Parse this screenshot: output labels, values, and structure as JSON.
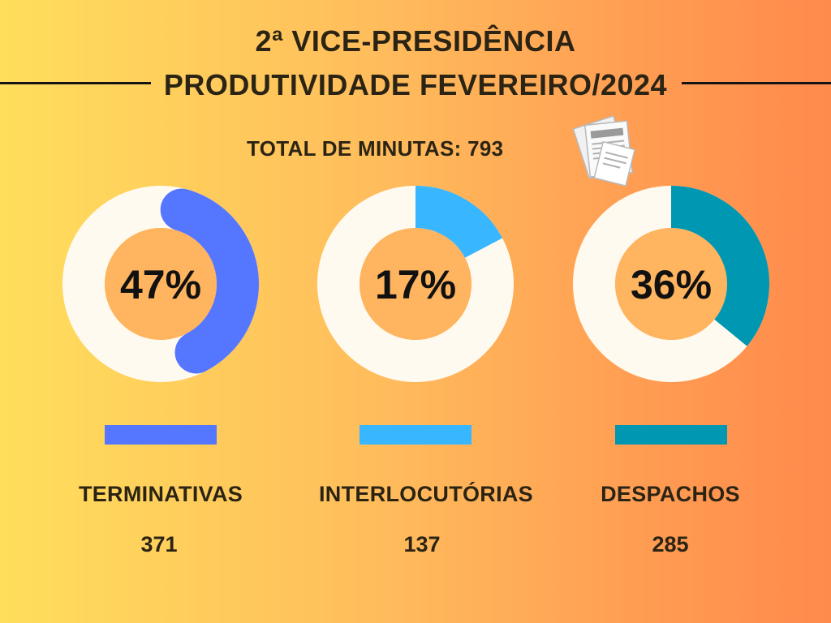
{
  "header": {
    "title_line1": "2ª VICE-PRESIDÊNCIA",
    "title_line2": "PRODUTIVIDADE FEVEREIRO/2024",
    "total_text": "TOTAL DE MINUTAS: 793",
    "icon": "documents-icon"
  },
  "colors": {
    "track": "#fffaf0",
    "hole": "#ffb45f",
    "terminativas": "#5576ff",
    "interlocutorias": "#38b6ff",
    "despachos": "#0097b2"
  },
  "chart_data": {
    "type": "pie",
    "total": 793,
    "categories": [
      "TERMINATIVAS",
      "INTERLOCUTÓRIAS",
      "DESPACHOS"
    ],
    "values": [
      371,
      137,
      285
    ],
    "percent_labels": [
      "47%",
      "17%",
      "36%"
    ],
    "percents": [
      47,
      17,
      36
    ],
    "legend": "bottom"
  }
}
